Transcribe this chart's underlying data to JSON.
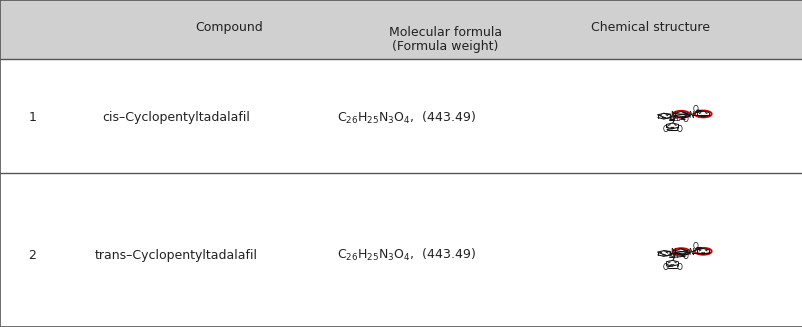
{
  "fig_width": 8.03,
  "fig_height": 3.27,
  "dpi": 100,
  "bg_color": "#ffffff",
  "header_bg": "#d0d0d0",
  "border_color": "#555555",
  "row1_num": "1",
  "row1_compound": "cis–Cyclopentyltadalafil",
  "row2_num": "2",
  "row2_compound": "trans–Cyclopentyltadalafil",
  "formula": "C$_{26}$H$_{25}$N$_{3}$O$_{4}$,  (443.49)",
  "text_color": "#222222",
  "font_size_header": 9,
  "font_size_body": 9,
  "red_circle_color": "#cc0000",
  "struct_line_color": "#111111",
  "header_text_compound": "Compound",
  "header_text_formula1": "Molecular formula",
  "header_text_formula2": "(Formula weight)",
  "header_text_structure": "Chemical structure"
}
